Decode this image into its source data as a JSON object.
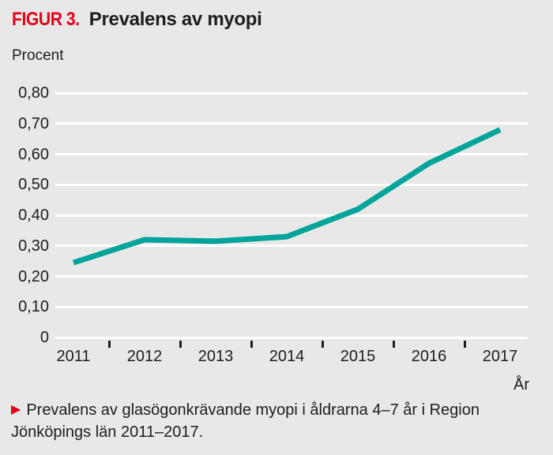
{
  "figure": {
    "kicker": "FIGUR 3.",
    "title": "Prevalens av myopi"
  },
  "axes": {
    "y_title": "Procent",
    "x_title": "År"
  },
  "caption": {
    "bullet": "▶",
    "lines": [
      "Prevalens av glasögonkrävande myopi i åldrarna 4–7 år i Region",
      "Jönköpings län 2011–2017."
    ]
  },
  "colors": {
    "background": "#e8e8e8",
    "line": "#00a49a",
    "accent_red": "#e2001a",
    "text": "#1d1d1b",
    "gridline": "#ffffff"
  },
  "chart_data": {
    "type": "line",
    "title": "Prevalens av myopi",
    "xlabel": "År",
    "ylabel": "Procent",
    "categories": [
      "2011",
      "2012",
      "2013",
      "2014",
      "2015",
      "2016",
      "2017"
    ],
    "values": [
      0.245,
      0.32,
      0.315,
      0.33,
      0.42,
      0.57,
      0.68
    ],
    "ylim": [
      0,
      0.8
    ],
    "ytick_step": 0.1,
    "ytick_labels": [
      "0",
      "0,10",
      "0,20",
      "0,30",
      "0,40",
      "0,50",
      "0,60",
      "0,70",
      "0,80"
    ],
    "grid": true,
    "legend": false,
    "line_width": 7
  }
}
